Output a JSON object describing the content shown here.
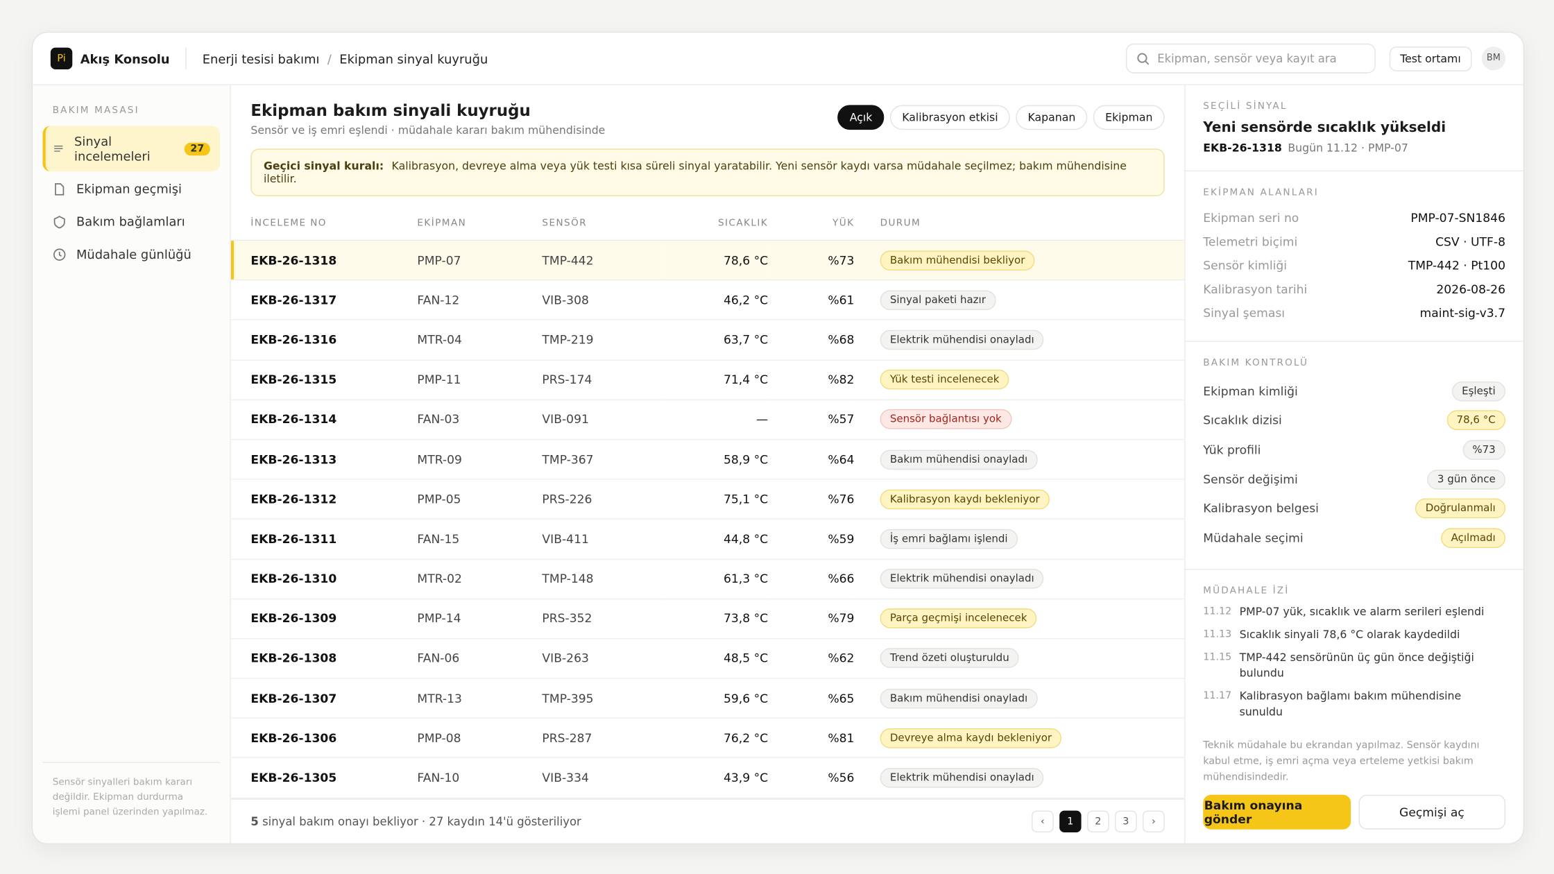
{
  "app": {
    "logo": "Pi",
    "name": "Akış Konsolu"
  },
  "breadcrumb": [
    "Enerji tesisi bakımı",
    "Ekipman sinyal kuyruğu"
  ],
  "search_placeholder": "Ekipman, sensör veya kayıt ara",
  "environment": "Test ortamı",
  "user_initials": "BM",
  "sidebar": {
    "section": "BAKIM MASASI",
    "items": [
      {
        "label": "Sinyal incelemeleri",
        "badge": "27"
      },
      {
        "label": "Ekipman geçmişi"
      },
      {
        "label": "Bakım bağlamları"
      },
      {
        "label": "Müdahale günlüğü"
      }
    ],
    "note": "Sensör sinyalleri bakım kararı değildir. Ekipman durdurma işlemi panel üzerinden yapılmaz."
  },
  "main": {
    "title": "Ekipman bakım sinyali kuyruğu",
    "subtitle": "Sensör ve iş emri eşlendi · müdahale kararı bakım mühendisinde",
    "filters": [
      "Açık",
      "Kalibrasyon etkisi",
      "Kapanan",
      "Ekipman"
    ],
    "notice": {
      "label": "Geçici sinyal kuralı:",
      "text": "Kalibrasyon, devreye alma veya yük testi kısa süreli sinyal yaratabilir. Yeni sensör kaydı varsa müdahale seçilmez; bakım mühendisine iletilir."
    },
    "table": {
      "columns": [
        "İNCELEME NO",
        "EKİPMAN",
        "SENSÖR",
        "SICAKLIK",
        "YÜK",
        "DURUM"
      ],
      "rows": [
        {
          "id": "EKB-26-1318",
          "equipment": "PMP-07",
          "sensor": "TMP-442",
          "temp": "78,6 °C",
          "load": "%73",
          "status": "Bakım mühendisi bekliyor",
          "tone": "warn"
        },
        {
          "id": "EKB-26-1317",
          "equipment": "FAN-12",
          "sensor": "VIB-308",
          "temp": "46,2 °C",
          "load": "%61",
          "status": "Sinyal paketi hazır",
          "tone": "neutral"
        },
        {
          "id": "EKB-26-1316",
          "equipment": "MTR-04",
          "sensor": "TMP-219",
          "temp": "63,7 °C",
          "load": "%68",
          "status": "Elektrik mühendisi onayladı",
          "tone": "neutral"
        },
        {
          "id": "EKB-26-1315",
          "equipment": "PMP-11",
          "sensor": "PRS-174",
          "temp": "71,4 °C",
          "load": "%82",
          "status": "Yük testi incelenecek",
          "tone": "warn"
        },
        {
          "id": "EKB-26-1314",
          "equipment": "FAN-03",
          "sensor": "VIB-091",
          "temp": "—",
          "load": "%57",
          "status": "Sensör bağlantısı yok",
          "tone": "danger"
        },
        {
          "id": "EKB-26-1313",
          "equipment": "MTR-09",
          "sensor": "TMP-367",
          "temp": "58,9 °C",
          "load": "%64",
          "status": "Bakım mühendisi onayladı",
          "tone": "neutral"
        },
        {
          "id": "EKB-26-1312",
          "equipment": "PMP-05",
          "sensor": "PRS-226",
          "temp": "75,1 °C",
          "load": "%76",
          "status": "Kalibrasyon kaydı bekleniyor",
          "tone": "warn"
        },
        {
          "id": "EKB-26-1311",
          "equipment": "FAN-15",
          "sensor": "VIB-411",
          "temp": "44,8 °C",
          "load": "%59",
          "status": "İş emri bağlamı işlendi",
          "tone": "neutral"
        },
        {
          "id": "EKB-26-1310",
          "equipment": "MTR-02",
          "sensor": "TMP-148",
          "temp": "61,3 °C",
          "load": "%66",
          "status": "Elektrik mühendisi onayladı",
          "tone": "neutral"
        },
        {
          "id": "EKB-26-1309",
          "equipment": "PMP-14",
          "sensor": "PRS-352",
          "temp": "73,8 °C",
          "load": "%79",
          "status": "Parça geçmişi incelenecek",
          "tone": "warn"
        },
        {
          "id": "EKB-26-1308",
          "equipment": "FAN-06",
          "sensor": "VIB-263",
          "temp": "48,5 °C",
          "load": "%62",
          "status": "Trend özeti oluşturuldu",
          "tone": "neutral"
        },
        {
          "id": "EKB-26-1307",
          "equipment": "MTR-13",
          "sensor": "TMP-395",
          "temp": "59,6 °C",
          "load": "%65",
          "status": "Bakım mühendisi onayladı",
          "tone": "neutral"
        },
        {
          "id": "EKB-26-1306",
          "equipment": "PMP-08",
          "sensor": "PRS-287",
          "temp": "76,2 °C",
          "load": "%81",
          "status": "Devreye alma kaydı bekleniyor",
          "tone": "warn"
        },
        {
          "id": "EKB-26-1305",
          "equipment": "FAN-10",
          "sensor": "VIB-334",
          "temp": "43,9 °C",
          "load": "%56",
          "status": "Elektrik mühendisi onayladı",
          "tone": "neutral"
        }
      ]
    },
    "footer": {
      "count": "5",
      "text": "sinyal bakım onayı bekliyor · 27 kaydın 14'ü gösteriliyor"
    },
    "pages": [
      "1",
      "2",
      "3"
    ]
  },
  "detail": {
    "section": "SEÇİLİ SİNYAL",
    "title": "Yeni sensörde sıcaklık yükseldi",
    "id": "EKB-26-1318",
    "meta": "Bugün 11.12 · PMP-07",
    "fields_title": "EKİPMAN ALANLARI",
    "fields": [
      [
        "Ekipman seri no",
        "PMP-07-SN1846"
      ],
      [
        "Telemetri biçimi",
        "CSV · UTF-8"
      ],
      [
        "Sensör kimliği",
        "TMP-442 · Pt100"
      ],
      [
        "Kalibrasyon tarihi",
        "2026-08-26"
      ],
      [
        "Sinyal şeması",
        "maint-sig-v3.7"
      ]
    ],
    "checks_title": "BAKIM KONTROLÜ",
    "checks": [
      {
        "label": "Ekipman kimliği",
        "value": "Eşleşti",
        "tone": "neutral"
      },
      {
        "label": "Sıcaklık dizisi",
        "value": "78,6 °C",
        "tone": "warn"
      },
      {
        "label": "Yük profili",
        "value": "%73",
        "tone": "neutral"
      },
      {
        "label": "Sensör değişimi",
        "value": "3 gün önce",
        "tone": "neutral"
      },
      {
        "label": "Kalibrasyon belgesi",
        "value": "Doğrulanmalı",
        "tone": "warn"
      },
      {
        "label": "Müdahale seçimi",
        "value": "Açılmadı",
        "tone": "warn"
      }
    ],
    "trail_title": "MÜDAHALE İZİ",
    "trail": [
      [
        "11.12",
        "PMP-07 yük, sıcaklık ve alarm serileri eşlendi"
      ],
      [
        "11.13",
        "Sıcaklık sinyali 78,6 °C olarak kaydedildi"
      ],
      [
        "11.15",
        "TMP-442 sensörünün üç gün önce değiştiği bulundu"
      ],
      [
        "11.17",
        "Kalibrasyon bağlamı bakım mühendisine sunuldu"
      ]
    ],
    "note": "Teknik müdahale bu ekrandan yapılmaz. Sensör kaydını kabul etme, iş emri açma veya erteleme yetkisi bakım mühendisindedir.",
    "primary": "Bakım onayına gönder",
    "secondary": "Geçmişi aç"
  }
}
